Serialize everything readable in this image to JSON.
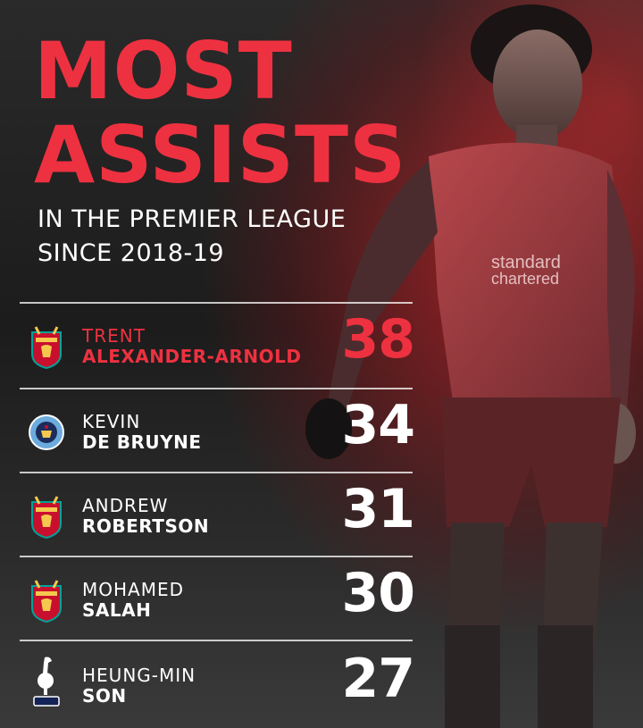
{
  "header": {
    "title_line1": "MOST",
    "title_line2": "ASSISTS",
    "subtitle_line1": "IN THE PREMIER LEAGUE",
    "subtitle_line2": "SINCE 2018-19"
  },
  "colors": {
    "accent": "#ee3140",
    "text": "#ffffff",
    "background": "#1e1e1e"
  },
  "players": [
    {
      "first": "TRENT",
      "last": "ALEXANDER-ARNOLD",
      "assists": "38",
      "club_icon": "liverpool-crest-icon",
      "highlight": true
    },
    {
      "first": "KEVIN",
      "last": "DE BRUYNE",
      "assists": "34",
      "club_icon": "manchester-city-crest-icon",
      "highlight": false
    },
    {
      "first": "ANDREW",
      "last": "ROBERTSON",
      "assists": "31",
      "club_icon": "liverpool-crest-icon",
      "highlight": false
    },
    {
      "first": "MOHAMED",
      "last": "SALAH",
      "assists": "30",
      "club_icon": "liverpool-crest-icon",
      "highlight": false
    },
    {
      "first": "HEUNG-MIN",
      "last": "SON",
      "assists": "27",
      "club_icon": "tottenham-crest-icon",
      "highlight": false
    }
  ]
}
